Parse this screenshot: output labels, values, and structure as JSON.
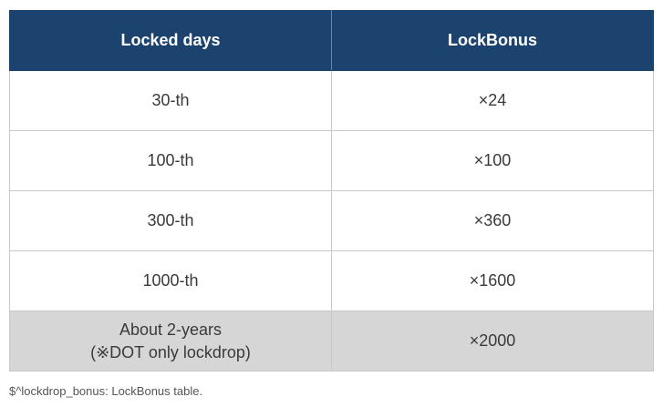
{
  "table": {
    "headers": [
      "Locked days",
      "LockBonus"
    ],
    "rows": [
      {
        "days": "30-th",
        "bonus": "×24"
      },
      {
        "days": "100-th",
        "bonus": "×100"
      },
      {
        "days": "300-th",
        "bonus": "×360"
      },
      {
        "days": "1000-th",
        "bonus": "×1600"
      }
    ],
    "final_row": {
      "days_line1": "About 2-years",
      "days_line2": "(※DOT only lockdrop)",
      "bonus": "×2000"
    }
  },
  "caption": "$^lockdrop_bonus: LockBonus table."
}
